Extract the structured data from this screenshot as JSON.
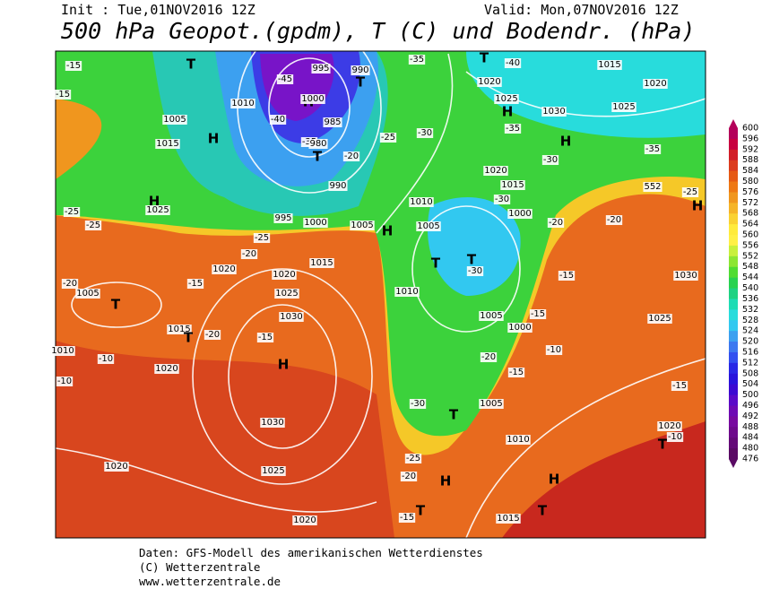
{
  "header": {
    "init": "Init : Tue,01NOV2016 12Z",
    "valid": "Valid: Mon,07NOV2016 12Z",
    "title": "500 hPa Geopot.(gpdm), T (C) und Bodendr. (hPa)"
  },
  "colorbar": {
    "ticks": [
      600,
      596,
      592,
      588,
      584,
      580,
      576,
      572,
      568,
      564,
      560,
      556,
      552,
      548,
      544,
      540,
      536,
      532,
      528,
      524,
      520,
      516,
      512,
      508,
      504,
      500,
      496,
      492,
      488,
      484,
      480,
      476
    ],
    "colors": [
      "#b4005a",
      "#c80040",
      "#d21e28",
      "#dc3c1e",
      "#e65a14",
      "#ee7814",
      "#f0961e",
      "#f5b428",
      "#fad232",
      "#ffeb3c",
      "#fff046",
      "#c8f03c",
      "#8ce632",
      "#50dc32",
      "#28d250",
      "#1ed282",
      "#1edcb4",
      "#28dcdc",
      "#32c8f0",
      "#3ca0f0",
      "#3c78f0",
      "#3250f0",
      "#2828e6",
      "#2814dc",
      "#3c0ad2",
      "#5a0ac8",
      "#6e0ab4",
      "#780aa0",
      "#6e0a8c",
      "#640a78",
      "#5a0a64"
    ]
  },
  "map_labels": [
    "-15",
    "-15",
    "1005",
    "1015",
    "H",
    "T",
    "1010",
    "H",
    "995",
    "990",
    "T",
    "1000",
    "985",
    "-45",
    "-40",
    "-35",
    "980",
    "T",
    "990",
    "995",
    "1000",
    "1005",
    "H",
    "1025",
    "-25",
    "-25",
    "1020",
    "1015",
    "1020",
    "1025",
    "1030",
    "T",
    "1005",
    "-20",
    "-15",
    "1015",
    "T",
    "-20",
    "-15",
    "H",
    "1020",
    "-10",
    "-10",
    "1010",
    "1030",
    "1020",
    "1025",
    "1020",
    "H",
    "1010",
    "1010",
    "1005",
    "T",
    "T",
    "-30",
    "1000",
    "1015",
    "1020",
    "-30",
    "-25",
    "-20",
    "-30",
    "-25",
    "-20",
    "-35",
    "1020",
    "1025",
    "H",
    "1030",
    "H",
    "-35",
    "-30",
    "1015",
    "1020",
    "1025",
    "-40",
    "T",
    "-35",
    "552",
    "-25",
    "H",
    "-20",
    "-20",
    "1030",
    "1025",
    "1000",
    "1005",
    "-15",
    "-15",
    "-10",
    "-20",
    "-15",
    "1005",
    "-30",
    "T",
    "1010",
    "-25",
    "H",
    "-20",
    "T",
    "-15",
    "1015",
    "T",
    "H",
    "1020",
    "-10",
    "T",
    "-15"
  ],
  "footer": {
    "line1": "Daten: GFS-Modell des amerikanischen Wetterdienstes",
    "line2": "(C) Wetterzentrale",
    "line3": "www.wetterzentrale.de"
  }
}
